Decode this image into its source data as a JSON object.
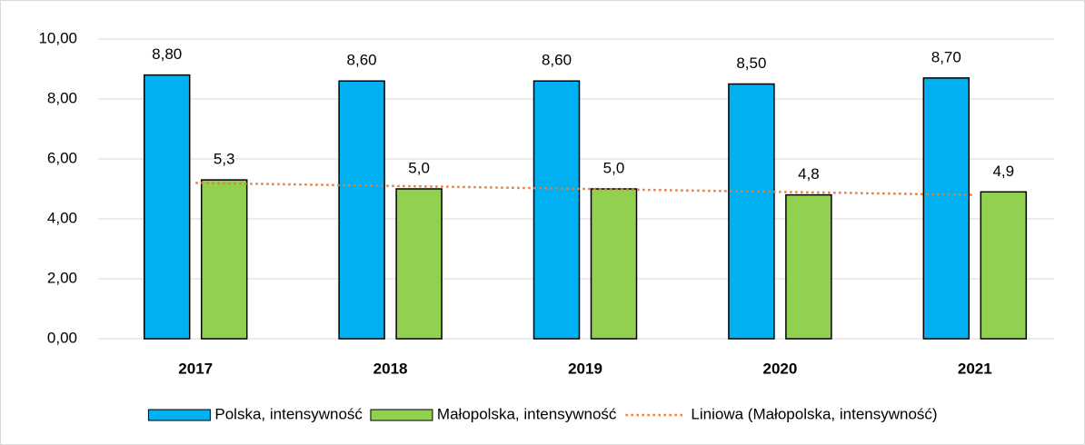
{
  "chart_data": {
    "type": "bar",
    "categories": [
      "2017",
      "2018",
      "2019",
      "2020",
      "2021"
    ],
    "series": [
      {
        "name": "Polska, intensywność",
        "color": "#00b0f0",
        "values": [
          8.8,
          8.6,
          8.6,
          8.5,
          8.7
        ],
        "value_labels": [
          "8,80",
          "8,60",
          "8,60",
          "8,50",
          "8,70"
        ]
      },
      {
        "name": "Małopolska, intensywność",
        "color": "#92d050",
        "values": [
          5.3,
          5.0,
          5.0,
          4.8,
          4.9
        ],
        "value_labels": [
          "5,3",
          "5,0",
          "5,0",
          "4,8",
          "4,9"
        ]
      },
      {
        "name": "Liniowa (Małopolska, intensywność)",
        "type": "line",
        "dash": "dotted",
        "color": "#ed7d31",
        "values": [
          5.2,
          5.1,
          5.0,
          4.9,
          4.8
        ]
      }
    ],
    "ylim": [
      0,
      10
    ],
    "yticks": [
      {
        "value": 0,
        "label": "0,00"
      },
      {
        "value": 2,
        "label": "2,00"
      },
      {
        "value": 4,
        "label": "4,00"
      },
      {
        "value": 6,
        "label": "6,00"
      },
      {
        "value": 8,
        "label": "8,00"
      },
      {
        "value": 10,
        "label": "10,00"
      }
    ],
    "grid": true,
    "legend": "bottom"
  }
}
